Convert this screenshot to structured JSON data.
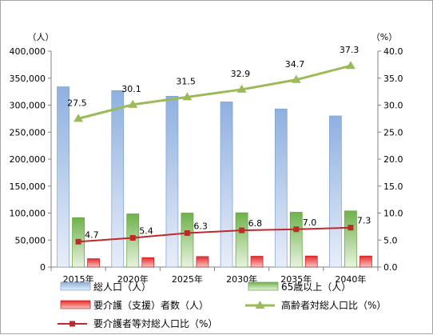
{
  "chart_data": {
    "type": "bar+line",
    "categories": [
      "2015年",
      "2020年",
      "2025年",
      "2030年",
      "2035年",
      "2040年"
    ],
    "y_left": {
      "unit": "（人）",
      "min": 0,
      "max": 400000,
      "step": 50000,
      "tick_labels": [
        "0",
        "50,000",
        "100,000",
        "150,000",
        "200,000",
        "250,000",
        "300,000",
        "350,000",
        "400,000"
      ]
    },
    "y_right": {
      "unit": "（%）",
      "min": 0,
      "max": 40,
      "step": 5,
      "tick_labels": [
        "0.0",
        "5.0",
        "10.0",
        "15.0",
        "20.0",
        "25.0",
        "30.0",
        "35.0",
        "40.0"
      ]
    },
    "series": [
      {
        "name": "総人口（人）",
        "kind": "bar",
        "axis": "left",
        "color": "#8fb0e0",
        "values": [
          334000,
          327000,
          316500,
          306000,
          293000,
          280000
        ]
      },
      {
        "name": "65歳以上（人）",
        "kind": "bar",
        "axis": "left",
        "color": "#7cbf5a",
        "values": [
          91500,
          98500,
          100000,
          100500,
          101500,
          104000
        ]
      },
      {
        "name": "要介護（支援）者数（人）",
        "kind": "bar",
        "axis": "left",
        "color": "#e03030",
        "values": [
          15500,
          17500,
          19500,
          20000,
          20500,
          20500
        ]
      },
      {
        "name": "高齢者対総人口比（%）",
        "kind": "line",
        "axis": "right",
        "color": "#9bbb59",
        "marker": "triangle",
        "values": [
          27.5,
          30.1,
          31.5,
          32.9,
          34.7,
          37.3
        ],
        "labels": [
          "27.5",
          "30.1",
          "31.5",
          "32.9",
          "34.7",
          "37.3"
        ]
      },
      {
        "name": "要介護者等対総人口比（%）",
        "kind": "line",
        "axis": "right",
        "color": "#c0282b",
        "marker": "square",
        "values": [
          4.7,
          5.4,
          6.3,
          6.8,
          7.0,
          7.3
        ],
        "labels": [
          "4.7",
          "5.4",
          "6.3",
          "6.8",
          "7.0",
          "7.3"
        ]
      }
    ],
    "grid": false,
    "legend": "bottom"
  }
}
